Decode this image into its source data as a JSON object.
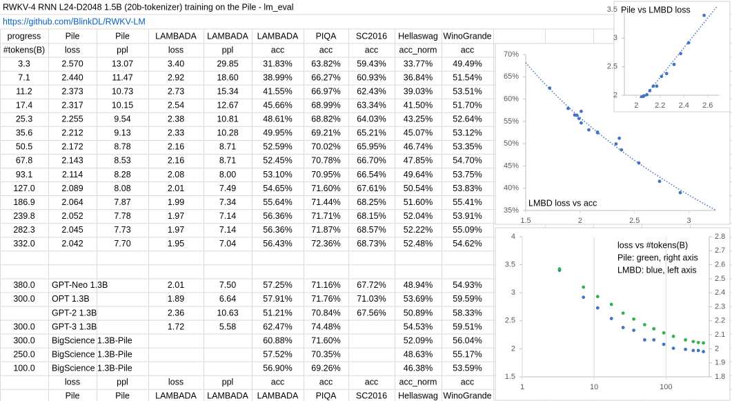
{
  "sheet": {
    "title": "RWKV-4 RNN L24-D2048 1.5B (20b-tokenizer) training on the Pile - lm_eval",
    "link": "https://github.com/BlinkDL/RWKV-LM",
    "header": [
      [
        "progress",
        "Pile",
        "Pile",
        "LAMBADA",
        "LAMBADA",
        "LAMBADA",
        "PIQA",
        "SC2016",
        "Hellaswag",
        "WinoGrande"
      ],
      [
        "#tokens(B)",
        "loss",
        "ppl",
        "loss",
        "ppl",
        "acc",
        "acc",
        "acc",
        "acc_norm",
        "acc"
      ]
    ],
    "rows": [
      [
        "3.3",
        "2.570",
        "13.07",
        "3.40",
        "29.85",
        "31.83%",
        "63.82%",
        "59.43%",
        "33.77%",
        "49.49%"
      ],
      [
        "7.1",
        "2.440",
        "11.47",
        "2.92",
        "18.60",
        "38.99%",
        "66.27%",
        "60.93%",
        "36.84%",
        "51.54%"
      ],
      [
        "11.2",
        "2.373",
        "10.73",
        "2.73",
        "15.34",
        "41.55%",
        "66.97%",
        "62.43%",
        "39.03%",
        "53.51%"
      ],
      [
        "17.4",
        "2.317",
        "10.15",
        "2.54",
        "12.67",
        "45.66%",
        "68.99%",
        "63.34%",
        "41.50%",
        "51.70%"
      ],
      [
        "25.3",
        "2.255",
        "9.54",
        "2.38",
        "10.81",
        "48.61%",
        "68.82%",
        "64.03%",
        "43.25%",
        "52.64%"
      ],
      [
        "35.6",
        "2.212",
        "9.13",
        "2.33",
        "10.28",
        "49.95%",
        "69.21%",
        "65.21%",
        "45.07%",
        "53.12%"
      ],
      [
        "50.5",
        "2.172",
        "8.78",
        "2.16",
        "8.71",
        "52.59%",
        "70.02%",
        "65.95%",
        "46.74%",
        "53.35%"
      ],
      [
        "67.8",
        "2.143",
        "8.53",
        "2.16",
        "8.71",
        "52.45%",
        "70.78%",
        "66.70%",
        "47.85%",
        "54.70%"
      ],
      [
        "93.1",
        "2.114",
        "8.28",
        "2.08",
        "8.00",
        "53.10%",
        "70.95%",
        "66.54%",
        "49.64%",
        "53.75%"
      ],
      [
        "127.0",
        "2.089",
        "8.08",
        "2.01",
        "7.49",
        "54.65%",
        "71.60%",
        "67.61%",
        "50.54%",
        "53.83%"
      ],
      [
        "186.9",
        "2.064",
        "7.87",
        "1.99",
        "7.34",
        "55.64%",
        "71.44%",
        "68.25%",
        "51.60%",
        "55.41%"
      ],
      [
        "239.8",
        "2.052",
        "7.78",
        "1.97",
        "7.14",
        "56.36%",
        "71.71%",
        "68.15%",
        "52.04%",
        "53.91%"
      ],
      [
        "282.3",
        "2.045",
        "7.73",
        "1.97",
        "7.14",
        "56.36%",
        "71.87%",
        "68.57%",
        "52.22%",
        "55.09%"
      ],
      [
        "332.0",
        "2.042",
        "7.70",
        "1.95",
        "7.04",
        "56.43%",
        "72.36%",
        "68.73%",
        "52.48%",
        "54.62%"
      ]
    ],
    "baseline_rows": [
      [
        "380.0",
        "GPT-Neo 1.3B",
        "2.01",
        "7.50",
        "57.25%",
        "71.16%",
        "67.72%",
        "48.94%",
        "54.93%"
      ],
      [
        "300.0",
        "OPT 1.3B",
        "1.89",
        "6.64",
        "57.91%",
        "71.76%",
        "71.03%",
        "53.69%",
        "59.59%"
      ],
      [
        null,
        "GPT-2 1.3B",
        "2.36",
        "10.63",
        "51.21%",
        "70.84%",
        "67.56%",
        "50.89%",
        "58.33%"
      ],
      [
        "300.0",
        "GPT-3 1.3B",
        "1.72",
        "5.58",
        "62.47%",
        "74.48%",
        null,
        "54.53%",
        "59.51%"
      ],
      [
        "300.0",
        "BigScience 1.3B-Pile",
        null,
        null,
        "60.88%",
        "71.60%",
        null,
        "52.09%",
        "56.04%"
      ],
      [
        "250.0",
        "BigScience 1.3B-Pile",
        null,
        null,
        "57.52%",
        "70.35%",
        null,
        "48.63%",
        "55.17%"
      ],
      [
        "100.0",
        "BigScience 1.3B-Pile",
        null,
        null,
        "56.90%",
        "69.26%",
        null,
        "46.38%",
        "53.59%"
      ]
    ],
    "footer": [
      [
        null,
        "loss",
        "ppl",
        "loss",
        "ppl",
        "acc",
        "acc",
        "acc",
        "acc_norm",
        "acc"
      ],
      [
        null,
        "Pile",
        "Pile",
        "LAMBADA",
        "LAMBADA",
        "LAMBADA",
        "PIQA",
        "SC2016",
        "Hellaswag",
        "WinoGrande"
      ]
    ]
  },
  "charts": [
    {
      "type": "scatter",
      "title": "Pile vs LMBD loss",
      "color": "#4472c4",
      "trendline": "linear",
      "grid": false,
      "x": [
        2.57,
        2.44,
        2.373,
        2.317,
        2.255,
        2.212,
        2.172,
        2.143,
        2.114,
        2.089,
        2.064,
        2.052,
        2.045,
        2.042
      ],
      "values": [
        3.4,
        2.92,
        2.73,
        2.54,
        2.38,
        2.33,
        2.16,
        2.16,
        2.08,
        2.01,
        1.99,
        1.97,
        1.97,
        1.95
      ],
      "xlim": [
        1.9,
        2.7
      ],
      "xticks": [
        2,
        2.2,
        2.4,
        2.6
      ],
      "ylim": [
        2,
        3.5
      ],
      "yticks": [
        2,
        2.5,
        3,
        3.5
      ]
    },
    {
      "type": "scatter",
      "title": "LMBD loss vs acc",
      "color": "#4472c4",
      "trendline": "logarithmic",
      "grid": false,
      "x": [
        2.92,
        2.73,
        2.54,
        2.38,
        2.33,
        2.16,
        2.16,
        2.08,
        2.01,
        1.99,
        1.97,
        1.97,
        1.95,
        2.01,
        1.89,
        2.36,
        1.72
      ],
      "values": [
        38.99,
        41.55,
        45.66,
        48.61,
        49.95,
        52.59,
        52.45,
        53.1,
        54.65,
        55.64,
        56.36,
        56.36,
        56.43,
        57.25,
        57.91,
        51.21,
        62.47
      ],
      "xlim": [
        1.5,
        3.25
      ],
      "xticks": [
        1.5,
        2,
        2.5,
        3
      ],
      "ylim": [
        35,
        70
      ],
      "yticks": [
        {
          "value": 35,
          "label": "35%"
        },
        {
          "value": 40,
          "label": "40%"
        },
        {
          "value": 45,
          "label": "45%"
        },
        {
          "value": 50,
          "label": "50%"
        },
        {
          "value": 55,
          "label": "55%"
        },
        {
          "value": 60,
          "label": "60%"
        },
        {
          "value": 65,
          "label": "65%"
        },
        {
          "value": 70,
          "label": "70%"
        }
      ]
    },
    {
      "type": "scatter",
      "annotations": [
        "loss vs #tokens(B)",
        "Pile: green, right axis",
        "LMBD: blue, left axis"
      ],
      "x_scale": "log",
      "grid": true,
      "x": [
        3.3,
        7.1,
        11.2,
        17.4,
        25.3,
        35.6,
        50.5,
        67.8,
        93.1,
        127.0,
        186.9,
        239.8,
        282.3,
        332.0
      ],
      "series": [
        {
          "color": "#4472c4",
          "values": [
            3.4,
            2.92,
            2.73,
            2.54,
            2.38,
            2.33,
            2.16,
            2.16,
            2.08,
            2.01,
            1.99,
            1.97,
            1.97,
            1.95
          ]
        },
        {
          "color": "#2fb24b",
          "axis": "y2",
          "values": [
            2.57,
            2.44,
            2.373,
            2.317,
            2.255,
            2.212,
            2.172,
            2.143,
            2.114,
            2.089,
            2.064,
            2.052,
            2.045,
            2.042
          ]
        }
      ],
      "xlim": [
        1,
        400
      ],
      "xticks": [
        1,
        10,
        100
      ],
      "ylim": [
        1.5,
        4
      ],
      "yticks": [
        1.5,
        2,
        2.5,
        3,
        3.5,
        4
      ],
      "y2lim": [
        1.8,
        2.8
      ],
      "y2ticks": [
        1.8,
        1.9,
        2,
        2.1,
        2.2,
        2.3,
        2.4,
        2.5,
        2.6,
        2.7,
        2.8
      ]
    }
  ]
}
